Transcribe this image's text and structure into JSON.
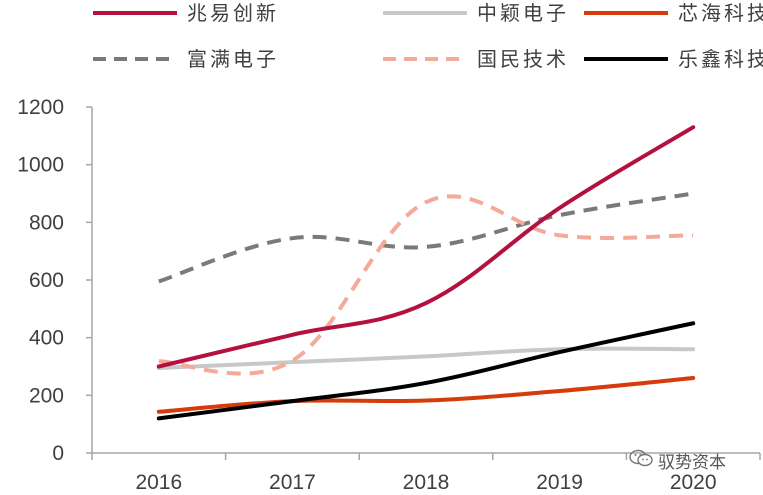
{
  "chart_data": {
    "type": "line",
    "title": "",
    "xlabel": "",
    "ylabel": "",
    "categories": [
      "2016",
      "2017",
      "2018",
      "2019",
      "2020"
    ],
    "ylim": [
      0,
      1200
    ],
    "yticks": [
      0,
      200,
      400,
      600,
      800,
      1000,
      1200
    ],
    "grid": false,
    "legend_position": "top",
    "series": [
      {
        "name": "兆易创新",
        "values": [
          300,
          410,
          520,
          850,
          1130
        ],
        "color": "#b5113f",
        "dash": "solid"
      },
      {
        "name": "中颖电子",
        "values": [
          295,
          315,
          335,
          360,
          360
        ],
        "color": "#c8c8c8",
        "dash": "solid"
      },
      {
        "name": "芯海科技",
        "values": [
          143,
          180,
          182,
          215,
          260
        ],
        "color": "#d63c0a",
        "dash": "solid"
      },
      {
        "name": "富满电子",
        "values": [
          595,
          745,
          715,
          825,
          900
        ],
        "color": "#7a7a7a",
        "dash": "dashed"
      },
      {
        "name": "国民技术",
        "values": [
          318,
          320,
          870,
          755,
          755
        ],
        "color": "#f4aa98",
        "dash": "dashed"
      },
      {
        "name": "乐鑫科技",
        "values": [
          120,
          180,
          243,
          350,
          450
        ],
        "color": "#000000",
        "dash": "solid"
      }
    ]
  },
  "watermark": {
    "icon": "wechat-icon",
    "text": "驭势资本"
  }
}
